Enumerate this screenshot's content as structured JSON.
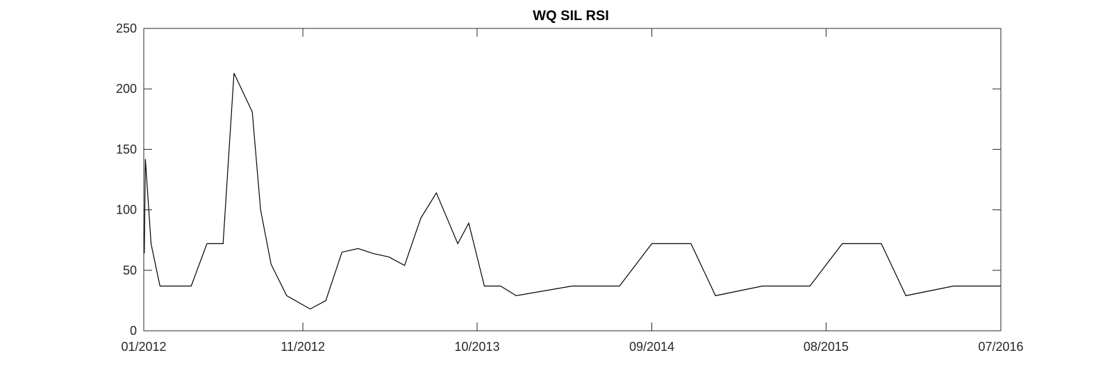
{
  "chart_data": {
    "type": "line",
    "title": "WQ SIL RSI",
    "xlabel": "",
    "ylabel": "",
    "x_axis": {
      "type": "date",
      "range": [
        "2012-01-01",
        "2016-07-01"
      ],
      "ticks": [
        {
          "date": "2012-01-01",
          "label": "01/2012"
        },
        {
          "date": "2012-11-01",
          "label": "11/2012"
        },
        {
          "date": "2013-10-01",
          "label": "10/2013"
        },
        {
          "date": "2014-09-01",
          "label": "09/2014"
        },
        {
          "date": "2015-08-01",
          "label": "08/2015"
        },
        {
          "date": "2016-07-01",
          "label": "07/2016"
        }
      ]
    },
    "y_axis": {
      "range": [
        0,
        250
      ],
      "ticks": [
        0,
        50,
        100,
        150,
        200,
        250
      ],
      "tick_labels": [
        "0",
        "50",
        "100",
        "150",
        "200",
        "250"
      ]
    },
    "grid": false,
    "box": true,
    "line_color": "#000000",
    "series": [
      {
        "name": "",
        "points": [
          {
            "x": "2012-01-02",
            "y": 64
          },
          {
            "x": "2012-01-04",
            "y": 142
          },
          {
            "x": "2012-01-15",
            "y": 72
          },
          {
            "x": "2012-02-01",
            "y": 37
          },
          {
            "x": "2012-03-01",
            "y": 37
          },
          {
            "x": "2012-04-01",
            "y": 37
          },
          {
            "x": "2012-05-01",
            "y": 72
          },
          {
            "x": "2012-06-01",
            "y": 72
          },
          {
            "x": "2012-06-22",
            "y": 213
          },
          {
            "x": "2012-07-27",
            "y": 181
          },
          {
            "x": "2012-08-12",
            "y": 100
          },
          {
            "x": "2012-09-01",
            "y": 55
          },
          {
            "x": "2012-10-01",
            "y": 29
          },
          {
            "x": "2012-11-15",
            "y": 18
          },
          {
            "x": "2012-12-15",
            "y": 25
          },
          {
            "x": "2013-01-15",
            "y": 65
          },
          {
            "x": "2013-02-15",
            "y": 68
          },
          {
            "x": "2013-03-15",
            "y": 64
          },
          {
            "x": "2013-04-15",
            "y": 61
          },
          {
            "x": "2013-05-15",
            "y": 54
          },
          {
            "x": "2013-06-15",
            "y": 93
          },
          {
            "x": "2013-07-15",
            "y": 114
          },
          {
            "x": "2013-08-25",
            "y": 72
          },
          {
            "x": "2013-09-15",
            "y": 89
          },
          {
            "x": "2013-10-15",
            "y": 37
          },
          {
            "x": "2013-11-15",
            "y": 37
          },
          {
            "x": "2013-12-15",
            "y": 29
          },
          {
            "x": "2014-04-01",
            "y": 37
          },
          {
            "x": "2014-07-01",
            "y": 37
          },
          {
            "x": "2014-09-01",
            "y": 72
          },
          {
            "x": "2014-11-15",
            "y": 72
          },
          {
            "x": "2015-01-01",
            "y": 29
          },
          {
            "x": "2015-04-01",
            "y": 37
          },
          {
            "x": "2015-07-01",
            "y": 37
          },
          {
            "x": "2015-09-01",
            "y": 72
          },
          {
            "x": "2015-11-15",
            "y": 72
          },
          {
            "x": "2016-01-01",
            "y": 29
          },
          {
            "x": "2016-04-01",
            "y": 37
          },
          {
            "x": "2016-07-01",
            "y": 37
          }
        ]
      }
    ]
  }
}
